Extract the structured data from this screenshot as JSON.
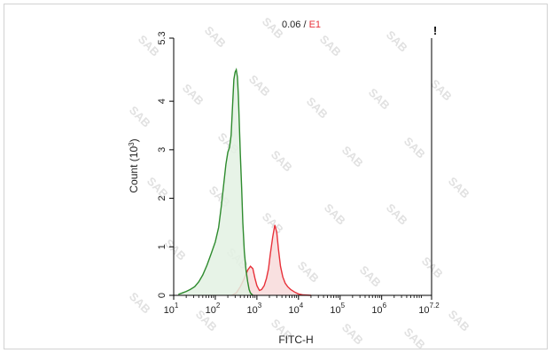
{
  "chart_data": {
    "type": "area",
    "title": "0.06",
    "title_separator": " / ",
    "gate_label": "E1",
    "xlabel": "FITC-H",
    "ylabel": "Count (10",
    "ylabel_exponent": "3",
    "ylabel_suffix": ")",
    "x_scale": "log",
    "xlim": [
      10,
      15848932
    ],
    "ylim": [
      0,
      5.3
    ],
    "x_ticks": [
      {
        "base": "10",
        "exp": "1",
        "value": 10
      },
      {
        "base": "10",
        "exp": "2",
        "value": 100
      },
      {
        "base": "10",
        "exp": "3",
        "value": 1000
      },
      {
        "base": "10",
        "exp": "4",
        "value": 10000
      },
      {
        "base": "10",
        "exp": "5",
        "value": 100000
      },
      {
        "base": "10",
        "exp": "6",
        "value": 1000000
      },
      {
        "base": "10",
        "exp": "7.2",
        "value": 15848932
      }
    ],
    "y_ticks": [
      {
        "label": "0",
        "value": 0
      },
      {
        "label": "1",
        "value": 1
      },
      {
        "label": "2",
        "value": 2
      },
      {
        "label": "3",
        "value": 3
      },
      {
        "label": "4",
        "value": 4
      },
      {
        "label": "5.3",
        "value": 5.3
      }
    ],
    "gate_marker": "!",
    "watermark_text": "SAB",
    "series": [
      {
        "color": "#2e8b2e",
        "fill": "#e3f1e3",
        "x": [
          13,
          16,
          20,
          25,
          32,
          40,
          50,
          63,
          79,
          100,
          120,
          140,
          160,
          180,
          200,
          220,
          240,
          260,
          280,
          300,
          320,
          340,
          360,
          380,
          400,
          430,
          460,
          500,
          550,
          600,
          650,
          700,
          800
        ],
        "y": [
          0.02,
          0.05,
          0.08,
          0.12,
          0.18,
          0.28,
          0.42,
          0.62,
          0.85,
          1.1,
          1.4,
          1.85,
          2.3,
          2.7,
          2.95,
          3.05,
          3.3,
          3.9,
          4.45,
          4.6,
          4.65,
          4.5,
          4.1,
          3.5,
          2.9,
          2.2,
          1.5,
          0.9,
          0.5,
          0.28,
          0.12,
          0.05,
          0.0
        ]
      },
      {
        "color": "#e8313a",
        "fill": "#f8dada",
        "x": [
          250,
          320,
          400,
          500,
          600,
          700,
          800,
          900,
          1000,
          1150,
          1300,
          1500,
          1700,
          1900,
          2100,
          2400,
          2700,
          3000,
          3300,
          3700,
          4200,
          4800,
          5500,
          6500,
          8000,
          10000,
          13000,
          20000
        ],
        "y": [
          0.0,
          0.05,
          0.18,
          0.35,
          0.52,
          0.6,
          0.55,
          0.35,
          0.2,
          0.1,
          0.12,
          0.2,
          0.35,
          0.55,
          0.85,
          1.2,
          1.45,
          1.3,
          0.95,
          0.6,
          0.38,
          0.25,
          0.18,
          0.12,
          0.07,
          0.03,
          0.01,
          0.0
        ]
      }
    ]
  }
}
